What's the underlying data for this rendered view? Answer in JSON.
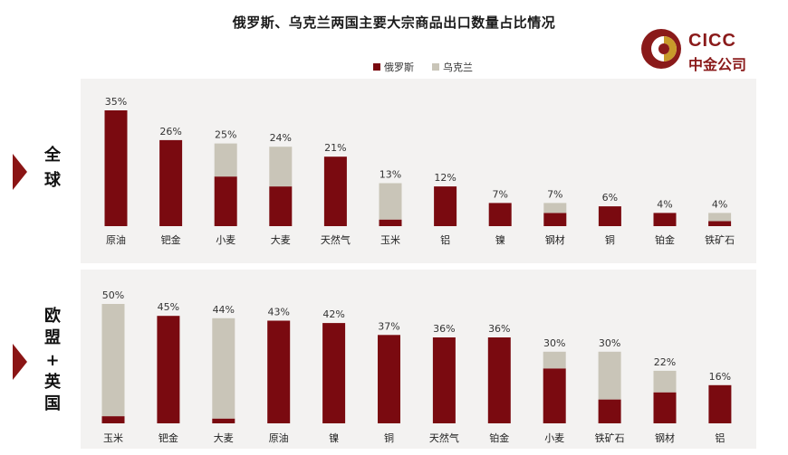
{
  "title": "俄罗斯、乌克兰两国主要大宗商品出口数量占比情况",
  "logo": {
    "en": "CICC",
    "cn": "中金公司"
  },
  "legend": [
    {
      "name": "俄罗斯",
      "color": "#7a0a10"
    },
    {
      "name": "乌克兰",
      "color": "#c9c5b8"
    }
  ],
  "colors": {
    "russia": "#7a0a10",
    "ukraine": "#c9c5b8",
    "panel_bg": "#f3f2f1",
    "arrow": "#8b1515"
  },
  "panels": [
    {
      "label_lines": [
        "全",
        "球"
      ]
    },
    {
      "label_lines": [
        "欧",
        "盟",
        "+",
        "英",
        "国"
      ]
    }
  ],
  "chart_data": [
    {
      "type": "bar",
      "stacked": true,
      "panel": "全球",
      "categories": [
        "原油",
        "钯金",
        "小麦",
        "大麦",
        "天然气",
        "玉米",
        "铝",
        "镍",
        "钢材",
        "铜",
        "铂金",
        "铁矿石"
      ],
      "total_labels": [
        "35%",
        "26%",
        "25%",
        "24%",
        "21%",
        "13%",
        "12%",
        "7%",
        "7%",
        "6%",
        "4%",
        "4%"
      ],
      "series": [
        {
          "name": "俄罗斯",
          "values": [
            35,
            26,
            15,
            12,
            21,
            2,
            12,
            7,
            4,
            6,
            4,
            1.5
          ]
        },
        {
          "name": "乌克兰",
          "values": [
            0,
            0,
            10,
            12,
            0,
            11,
            0,
            0,
            3,
            0,
            0,
            2.5
          ]
        }
      ],
      "ylim": [
        0,
        35
      ]
    },
    {
      "type": "bar",
      "stacked": true,
      "panel": "欧盟+英国",
      "categories": [
        "玉米",
        "钯金",
        "大麦",
        "原油",
        "镍",
        "铜",
        "天然气",
        "铂金",
        "小麦",
        "铁矿石",
        "钢材",
        "铝"
      ],
      "total_labels": [
        "50%",
        "45%",
        "44%",
        "43%",
        "42%",
        "37%",
        "36%",
        "36%",
        "30%",
        "30%",
        "22%",
        "16%"
      ],
      "series": [
        {
          "name": "俄罗斯",
          "values": [
            3,
            45,
            2,
            43,
            42,
            37,
            36,
            36,
            23,
            10,
            13,
            16
          ]
        },
        {
          "name": "乌克兰",
          "values": [
            47,
            0,
            42,
            0,
            0,
            0,
            0,
            0,
            7,
            20,
            9,
            0
          ]
        }
      ],
      "ylim": [
        0,
        50
      ]
    }
  ]
}
